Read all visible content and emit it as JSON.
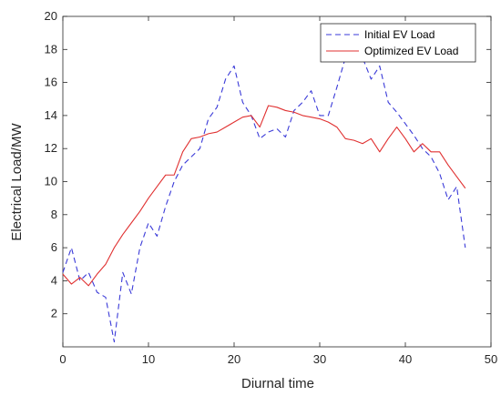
{
  "chart_data": {
    "type": "line",
    "xlabel": "Diurnal time",
    "ylabel": "Electrical Load/MW",
    "xlim": [
      0,
      50
    ],
    "ylim": [
      0,
      20
    ],
    "xticks": [
      "0",
      "10",
      "20",
      "30",
      "40",
      "50"
    ],
    "yticks": [
      "2",
      "4",
      "6",
      "8",
      "10",
      "12",
      "14",
      "16",
      "18",
      "20"
    ],
    "grid": false,
    "legend_position": "top-right",
    "x": [
      0,
      1,
      2,
      3,
      4,
      5,
      6,
      7,
      8,
      9,
      10,
      11,
      12,
      13,
      14,
      15,
      16,
      17,
      18,
      19,
      20,
      21,
      22,
      23,
      24,
      25,
      26,
      27,
      28,
      29,
      30,
      31,
      32,
      33,
      34,
      35,
      36,
      37,
      38,
      39,
      40,
      41,
      42,
      43,
      44,
      45,
      46,
      47
    ],
    "series": [
      {
        "name": "Initial EV Load",
        "color": "#3a3ad8",
        "dash": true,
        "values": [
          4.5,
          6.0,
          4.0,
          4.5,
          3.3,
          3.0,
          0.3,
          4.5,
          3.2,
          6.0,
          7.5,
          6.7,
          8.5,
          10.0,
          11.0,
          11.5,
          12.0,
          13.8,
          14.5,
          16.2,
          17.0,
          14.8,
          14.0,
          12.6,
          13.0,
          13.2,
          12.7,
          14.3,
          14.8,
          15.5,
          14.0,
          14.0,
          15.7,
          17.5,
          18.2,
          17.5,
          16.2,
          17.0,
          14.8,
          14.2,
          13.5,
          12.8,
          12.0,
          11.5,
          10.5,
          8.9,
          9.7,
          6.0
        ]
      },
      {
        "name": "Optimized EV Load",
        "color": "#e03030",
        "dash": false,
        "values": [
          4.4,
          3.8,
          4.2,
          3.7,
          4.4,
          5.0,
          6.0,
          6.8,
          7.5,
          8.2,
          9.0,
          9.7,
          10.4,
          10.4,
          11.8,
          12.6,
          12.7,
          12.9,
          13.0,
          13.3,
          13.6,
          13.9,
          14.0,
          13.3,
          14.6,
          14.5,
          14.3,
          14.2,
          14.0,
          13.9,
          13.8,
          13.6,
          13.3,
          12.6,
          12.5,
          12.3,
          12.6,
          11.8,
          12.6,
          13.3,
          12.6,
          11.8,
          12.3,
          11.8,
          11.8,
          11.0,
          10.3,
          9.6
        ]
      }
    ]
  }
}
